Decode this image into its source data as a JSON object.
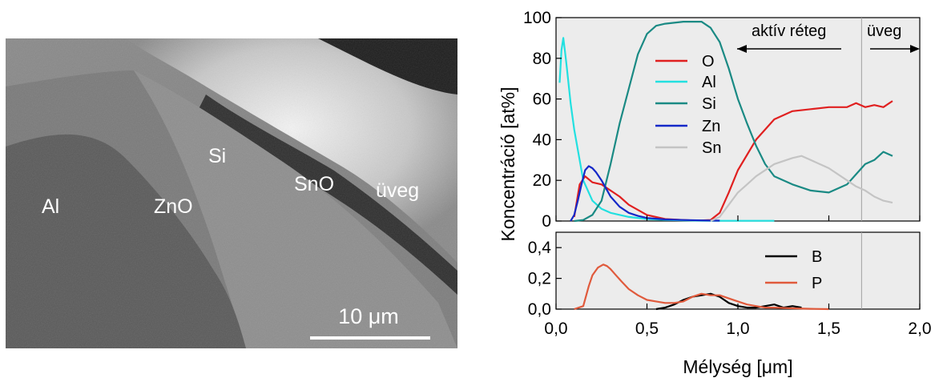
{
  "sem_image": {
    "labels": [
      "Al",
      "ZnO",
      "Si",
      "SnO",
      "üveg"
    ],
    "scalebar_label": "10 μm"
  },
  "chart_data": [
    {
      "type": "line",
      "panel": "top",
      "ylabel": "Koncentráció [at%]",
      "xlabel": "Mélység [μm]",
      "xlim": [
        0,
        2.0
      ],
      "ylim": [
        0,
        100
      ],
      "x_ticks": [
        "0,0",
        "0,5",
        "1,0",
        "1,5",
        "2,0"
      ],
      "y_ticks": [
        "0",
        "20",
        "40",
        "60",
        "80",
        "100"
      ],
      "legend_position": "upper-middle",
      "annotations": {
        "active_layer": "aktív réteg",
        "glass": "üveg",
        "divider_x": 1.68
      },
      "series": [
        {
          "name": "O",
          "color": "#e02020",
          "x": [
            0.1,
            0.13,
            0.16,
            0.2,
            0.25,
            0.3,
            0.35,
            0.4,
            0.5,
            0.6,
            0.7,
            0.75,
            0.8,
            0.85,
            0.9,
            0.95,
            1.0,
            1.1,
            1.2,
            1.3,
            1.4,
            1.5,
            1.6,
            1.65,
            1.7,
            1.75,
            1.8,
            1.85
          ],
          "y": [
            2,
            18,
            22,
            19,
            18,
            15,
            12,
            8,
            3,
            1,
            0.5,
            0.3,
            0.3,
            0.5,
            4,
            14,
            25,
            40,
            50,
            54,
            55,
            56,
            56,
            58,
            56,
            57,
            56,
            59
          ]
        },
        {
          "name": "Al",
          "color": "#22e0e0",
          "x": [
            0.02,
            0.03,
            0.04,
            0.05,
            0.06,
            0.08,
            0.1,
            0.15,
            0.2,
            0.25,
            0.3,
            0.4,
            0.5,
            0.6,
            0.7,
            0.8,
            0.9,
            1.0,
            1.1,
            1.2
          ],
          "y": [
            68,
            84,
            90,
            83,
            75,
            58,
            45,
            20,
            10,
            6,
            4,
            2,
            1,
            0.5,
            0.3,
            0.2,
            0.1,
            0.1,
            0.1,
            0.1
          ]
        },
        {
          "name": "Si",
          "color": "#1a8a84",
          "x": [
            0.1,
            0.15,
            0.2,
            0.25,
            0.3,
            0.35,
            0.4,
            0.45,
            0.5,
            0.55,
            0.6,
            0.7,
            0.8,
            0.85,
            0.9,
            0.95,
            1.0,
            1.05,
            1.1,
            1.15,
            1.2,
            1.3,
            1.4,
            1.5,
            1.6,
            1.65,
            1.7,
            1.75,
            1.8,
            1.85
          ],
          "y": [
            0,
            0.5,
            3,
            10,
            28,
            48,
            65,
            82,
            92,
            96,
            97,
            98,
            98,
            95,
            88,
            75,
            60,
            48,
            37,
            28,
            22,
            18,
            15,
            14,
            18,
            23,
            28,
            30,
            34,
            32
          ]
        },
        {
          "name": "Zn",
          "color": "#1428c8",
          "x": [
            0.08,
            0.1,
            0.12,
            0.14,
            0.16,
            0.18,
            0.2,
            0.22,
            0.25,
            0.3,
            0.35,
            0.4,
            0.45,
            0.5,
            0.6,
            0.7,
            0.8,
            0.9
          ],
          "y": [
            0,
            3,
            10,
            18,
            25,
            27,
            26,
            24,
            20,
            12,
            7,
            4,
            2.5,
            1.5,
            0.8,
            0.5,
            0.3,
            0.2
          ]
        },
        {
          "name": "Sn",
          "color": "#c4c4c4",
          "x": [
            0.85,
            0.9,
            0.95,
            1.0,
            1.05,
            1.1,
            1.2,
            1.3,
            1.35,
            1.4,
            1.5,
            1.6,
            1.65,
            1.7,
            1.75,
            1.8,
            1.85
          ],
          "y": [
            0,
            2,
            8,
            14,
            18,
            22,
            28,
            31,
            32,
            30,
            26,
            20,
            17,
            15,
            12,
            10,
            9
          ]
        }
      ]
    },
    {
      "type": "line",
      "panel": "bottom",
      "xlim": [
        0,
        2.0
      ],
      "ylim": [
        0,
        0.5
      ],
      "y_ticks": [
        "0,0",
        "0,2",
        "0,4"
      ],
      "legend_position": "top-right",
      "series": [
        {
          "name": "B",
          "color": "#000000",
          "x": [
            0.55,
            0.6,
            0.65,
            0.7,
            0.75,
            0.8,
            0.85,
            0.9,
            0.95,
            1.0,
            1.05,
            1.1,
            1.15,
            1.2,
            1.25,
            1.3,
            1.35
          ],
          "y": [
            0,
            0.01,
            0.03,
            0.06,
            0.08,
            0.09,
            0.1,
            0.08,
            0.04,
            0.02,
            0.01,
            0.01,
            0.02,
            0.03,
            0.01,
            0.02,
            0.01
          ]
        },
        {
          "name": "P",
          "color": "#e05a3c",
          "x": [
            0.1,
            0.15,
            0.18,
            0.2,
            0.23,
            0.26,
            0.28,
            0.3,
            0.33,
            0.36,
            0.4,
            0.45,
            0.5,
            0.55,
            0.6,
            0.65,
            0.7,
            0.75,
            0.8,
            0.85,
            0.9,
            0.95,
            1.0,
            1.05,
            1.1,
            1.15,
            1.2,
            1.3,
            1.4,
            1.5
          ],
          "y": [
            0,
            0.02,
            0.15,
            0.22,
            0.27,
            0.29,
            0.28,
            0.26,
            0.22,
            0.18,
            0.13,
            0.09,
            0.06,
            0.05,
            0.04,
            0.04,
            0.05,
            0.08,
            0.1,
            0.09,
            0.09,
            0.07,
            0.05,
            0.03,
            0.02,
            0.01,
            0.01,
            0.005,
            0.002,
            0
          ]
        }
      ]
    }
  ]
}
